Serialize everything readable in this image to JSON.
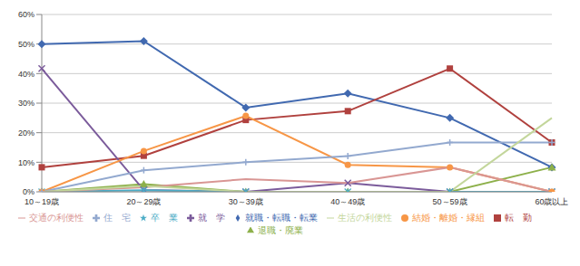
{
  "chart_data": {
    "type": "line",
    "categories": [
      "10～19歳",
      "20～29歳",
      "30～39歳",
      "40～49歳",
      "50～59歳",
      "60歳以上"
    ],
    "ylim": [
      0,
      60
    ],
    "yticks": [
      {
        "value": 0,
        "label": "0%"
      },
      {
        "value": 10,
        "label": "10%"
      },
      {
        "value": 20,
        "label": "20%"
      },
      {
        "value": 30,
        "label": "30%"
      },
      {
        "value": 40,
        "label": "40%"
      },
      {
        "value": 50,
        "label": "50%"
      },
      {
        "value": 60,
        "label": "60%"
      }
    ],
    "grid": true,
    "legend": "bottom",
    "series": [
      {
        "name": "就職・転職・転業",
        "color": "#4169b0",
        "marker": "diamond",
        "values": [
          50,
          51,
          28.5,
          33.3,
          25,
          8.3
        ]
      },
      {
        "name": "転　勤",
        "color": "#b0413e",
        "marker": "square",
        "values": [
          8.3,
          12.2,
          24.3,
          27.3,
          41.7,
          16.7
        ]
      },
      {
        "name": "退職・廃業",
        "color": "#8db04a",
        "marker": "triangle",
        "values": [
          0,
          2.6,
          0,
          0,
          0,
          8.3
        ]
      },
      {
        "name": "就　学",
        "color": "#7b5b9b",
        "marker": "x",
        "values": [
          41.7,
          0.6,
          0,
          3,
          0,
          0
        ]
      },
      {
        "name": "卒　業",
        "color": "#4bacc6",
        "marker": "star",
        "values": [
          0,
          0.5,
          0,
          0,
          0,
          0
        ]
      },
      {
        "name": "結婚・離婚・縁組",
        "color": "#f79646",
        "marker": "circle",
        "values": [
          0,
          13.8,
          25.7,
          9.1,
          8.3,
          0
        ]
      },
      {
        "name": "住　宅",
        "color": "#93a9cf",
        "marker": "plus",
        "values": [
          0,
          7.3,
          10,
          12.1,
          16.7,
          16.7
        ]
      },
      {
        "name": "交通の利便性",
        "color": "#d99694",
        "marker": "none",
        "values": [
          0,
          1.5,
          4.3,
          3,
          8.3,
          0
        ]
      },
      {
        "name": "生活の利便性",
        "color": "#c3d69b",
        "marker": "none",
        "values": [
          0,
          2,
          0,
          0,
          0,
          25
        ]
      }
    ]
  }
}
